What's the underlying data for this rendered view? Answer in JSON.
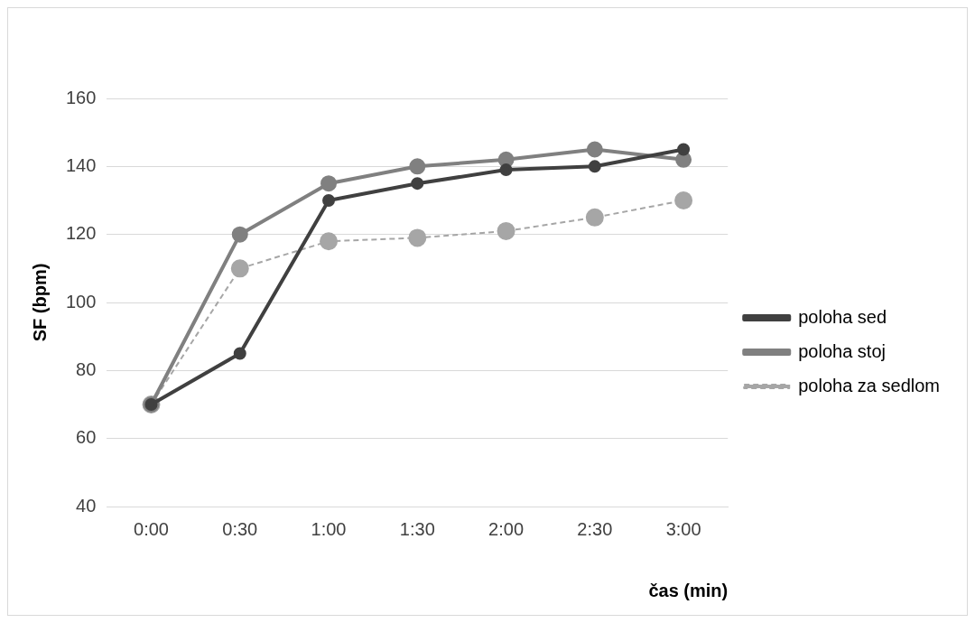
{
  "chart_data": {
    "type": "line",
    "xlabel": "čas (min)",
    "ylabel": "SF (bpm)",
    "categories": [
      "0:00",
      "0:30",
      "1:00",
      "1:30",
      "2:00",
      "2:30",
      "3:00"
    ],
    "series": [
      {
        "name": "poloha sed",
        "color": "#404040",
        "line_style": "solid",
        "values": [
          70,
          85,
          130,
          135,
          139,
          140,
          145
        ]
      },
      {
        "name": "poloha stoj",
        "color": "#808080",
        "line_style": "solid",
        "values": [
          70,
          120,
          135,
          140,
          142,
          145,
          142
        ]
      },
      {
        "name": "poloha za sedlom",
        "color": "#a6a6a6",
        "line_style": "dashed",
        "values": [
          70,
          110,
          118,
          119,
          121,
          125,
          130
        ]
      }
    ],
    "ylim": [
      40,
      160
    ],
    "yticks": [
      40,
      60,
      80,
      100,
      120,
      140,
      160
    ],
    "grid": "y",
    "legend": "right",
    "marker": "circle"
  }
}
